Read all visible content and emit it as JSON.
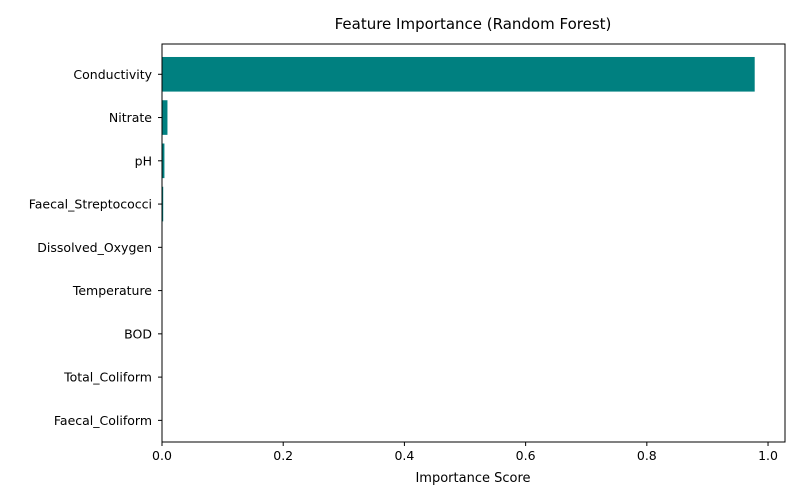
{
  "chart_data": {
    "type": "bar",
    "orientation": "horizontal",
    "title": "Feature Importance (Random Forest)",
    "xlabel": "Importance Score",
    "ylabel": "",
    "categories": [
      "Conductivity",
      "Nitrate",
      "pH",
      "Faecal_Streptococci",
      "Dissolved_Oxygen",
      "Temperature",
      "BOD",
      "Total_Coliform",
      "Faecal_Coliform"
    ],
    "values": [
      0.978,
      0.009,
      0.004,
      0.002,
      0.0005,
      0.0003,
      0.0002,
      0.0001,
      0.0001
    ],
    "xlim": [
      0.0,
      1.028
    ],
    "xticks": [
      0.0,
      0.2,
      0.4,
      0.6,
      0.8,
      1.0
    ],
    "xtick_labels": [
      "0.0",
      "0.2",
      "0.4",
      "0.6",
      "0.8",
      "1.0"
    ],
    "bar_color": "#008080",
    "grid": false,
    "legend": "none"
  }
}
